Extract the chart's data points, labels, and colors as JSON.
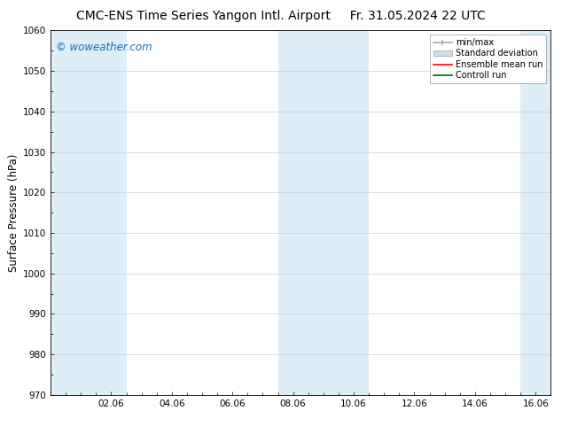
{
  "title_left": "CMC-ENS Time Series Yangon Intl. Airport",
  "title_right": "Fr. 31.05.2024 22 UTC",
  "ylabel": "Surface Pressure (hPa)",
  "ylim": [
    970,
    1060
  ],
  "yticks": [
    970,
    980,
    990,
    1000,
    1010,
    1020,
    1030,
    1040,
    1050,
    1060
  ],
  "xlim_start": 0.0,
  "xlim_end": 16.5,
  "xtick_labels": [
    "02.06",
    "04.06",
    "06.06",
    "08.06",
    "10.06",
    "12.06",
    "14.06",
    "16.06"
  ],
  "xtick_positions": [
    2,
    4,
    6,
    8,
    10,
    12,
    14,
    16
  ],
  "background_color": "#ffffff",
  "plot_bg_color": "#ffffff",
  "shaded_bands": [
    {
      "x_start": 0.0,
      "x_end": 2.5,
      "color": "#ddeef9"
    },
    {
      "x_start": 7.5,
      "x_end": 10.5,
      "color": "#ddeef9"
    },
    {
      "x_start": 15.5,
      "x_end": 16.5,
      "color": "#ddeef9"
    }
  ],
  "legend_items": [
    {
      "label": "min/max",
      "type": "errorbar",
      "color": "#aaaaaa"
    },
    {
      "label": "Standard deviation",
      "type": "fill",
      "color": "#c8dff0"
    },
    {
      "label": "Ensemble mean run",
      "type": "line",
      "color": "#ff0000"
    },
    {
      "label": "Controll run",
      "type": "line",
      "color": "#008000"
    }
  ],
  "watermark": "© woweather.com",
  "watermark_color": "#1a6eb5",
  "title_fontsize": 10,
  "tick_fontsize": 7.5,
  "ylabel_fontsize": 8.5,
  "legend_fontsize": 7,
  "grid_color": "#cccccc",
  "border_color": "#000000",
  "tick_color": "#000000"
}
